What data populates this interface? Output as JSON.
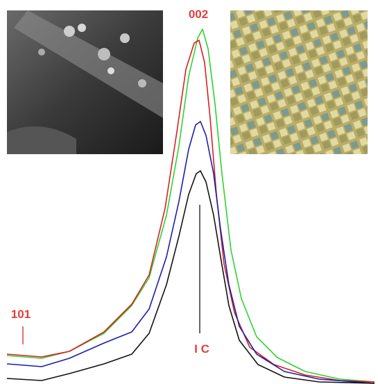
{
  "labels": {
    "peak_002": "002",
    "peak_101": "101",
    "crystallinity": "I C"
  }
}
